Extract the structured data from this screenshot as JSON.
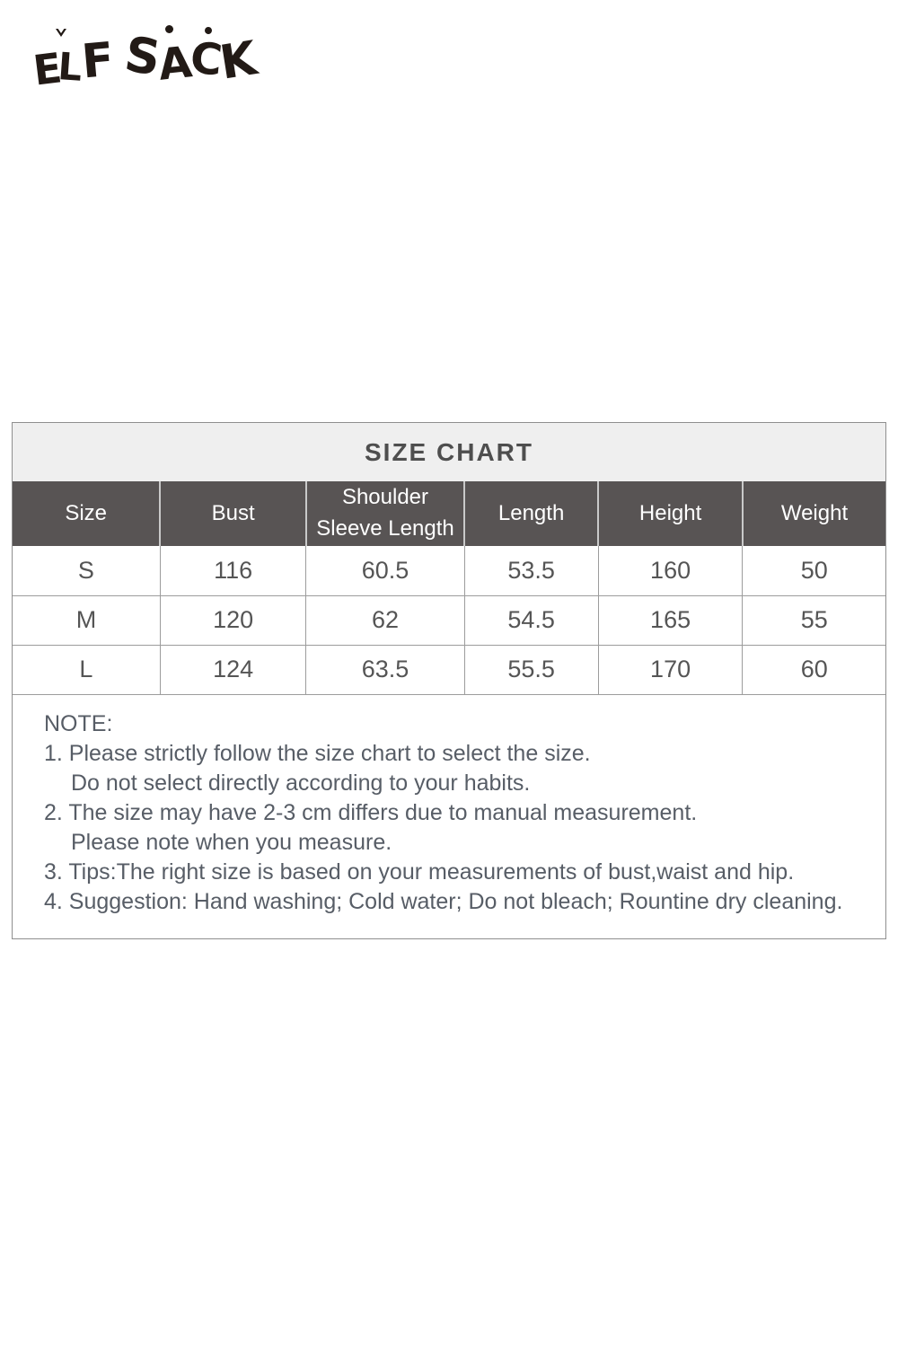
{
  "logo": {
    "text": "ELF SACK"
  },
  "size_chart": {
    "title": "SIZE CHART",
    "columns": [
      "Size",
      "Bust",
      "Shoulder Sleeve Length",
      "Length",
      "Height",
      "Weight"
    ],
    "rows": [
      [
        "S",
        "116",
        "60.5",
        "53.5",
        "160",
        "50"
      ],
      [
        "M",
        "120",
        "62",
        "54.5",
        "165",
        "55"
      ],
      [
        "L",
        "124",
        "63.5",
        "55.5",
        "170",
        "60"
      ]
    ],
    "notes": {
      "label": "NOTE:",
      "items": [
        {
          "text": "1. Please strictly follow the size chart to select the size.",
          "cont": "Do not select directly according to your habits."
        },
        {
          "text": "2. The size may have 2-3 cm differs due to manual measurement.",
          "cont": "Please note when you measure."
        },
        {
          "text": "3. Tips:The right size is based on your measurements of bust,waist and hip."
        },
        {
          "text": "4. Suggestion: Hand washing; Cold water; Do not bleach; Rountine dry cleaning."
        }
      ]
    }
  },
  "colors": {
    "header_background": "#585454",
    "title_background": "#efefef",
    "body_text": "#555555",
    "note_text": "#575d66",
    "logo_ink": "#221a16"
  },
  "chart_data": {
    "type": "table",
    "title": "SIZE CHART",
    "columns": [
      "Size",
      "Bust",
      "Shoulder Sleeve Length",
      "Length",
      "Height",
      "Weight"
    ],
    "rows": [
      [
        "S",
        "116",
        "60.5",
        "53.5",
        "160",
        "50"
      ],
      [
        "M",
        "120",
        "62",
        "54.5",
        "165",
        "55"
      ],
      [
        "L",
        "124",
        "63.5",
        "55.5",
        "170",
        "60"
      ]
    ]
  }
}
